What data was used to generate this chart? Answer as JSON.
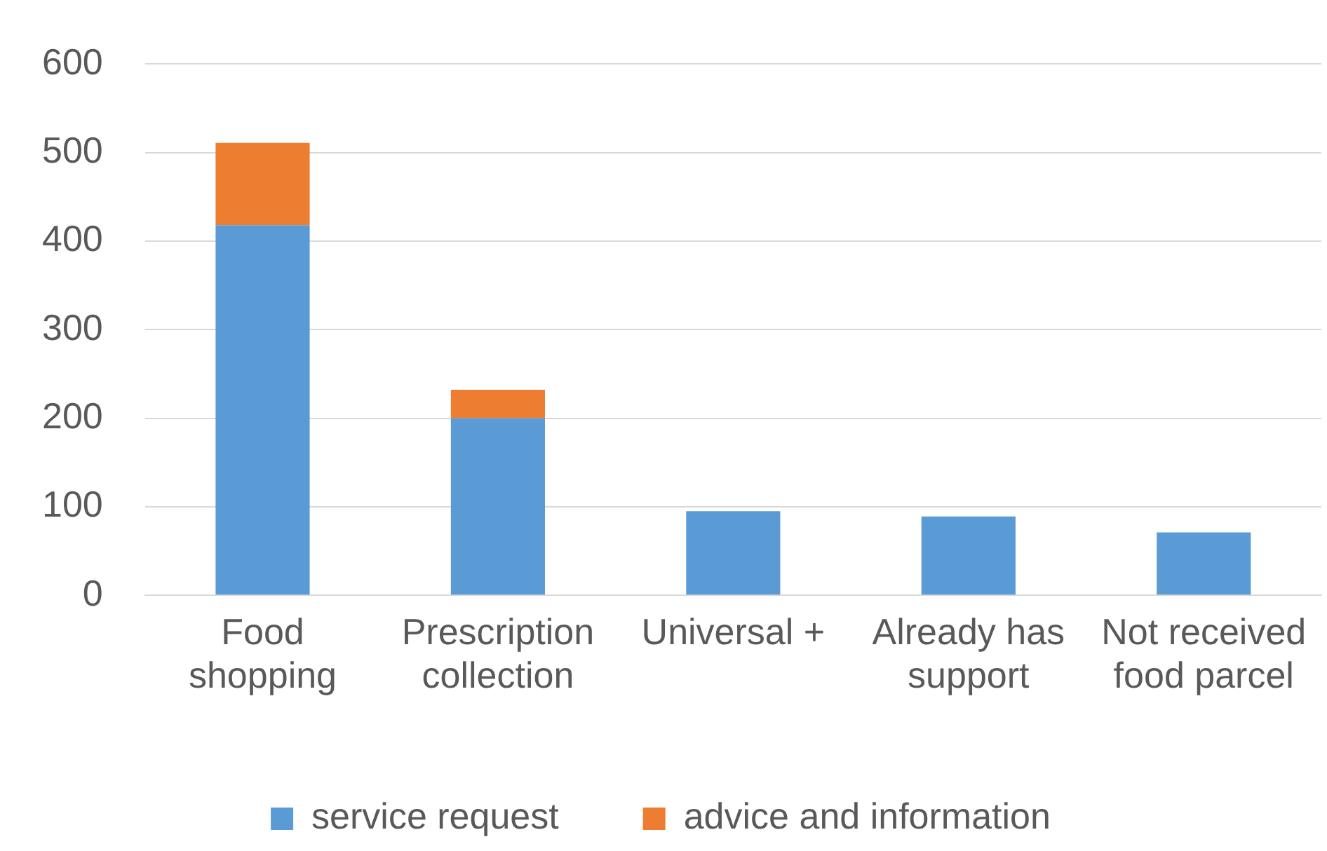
{
  "chart_data": {
    "type": "bar",
    "stacked": true,
    "categories": [
      "Food shopping",
      "Prescription collection",
      "Universal +",
      "Already has support",
      "Not received food parcel"
    ],
    "series": [
      {
        "name": "service request",
        "color": "#5b9bd5",
        "values": [
          418,
          200,
          95,
          89,
          71
        ]
      },
      {
        "name": "advice and information",
        "color": "#ed7d31",
        "values": [
          93,
          32,
          null,
          null,
          null
        ]
      }
    ],
    "ylim": [
      0,
      600
    ],
    "yticks": [
      0,
      100,
      200,
      300,
      400,
      500,
      600
    ],
    "grid": "y",
    "legend": "bottom"
  }
}
